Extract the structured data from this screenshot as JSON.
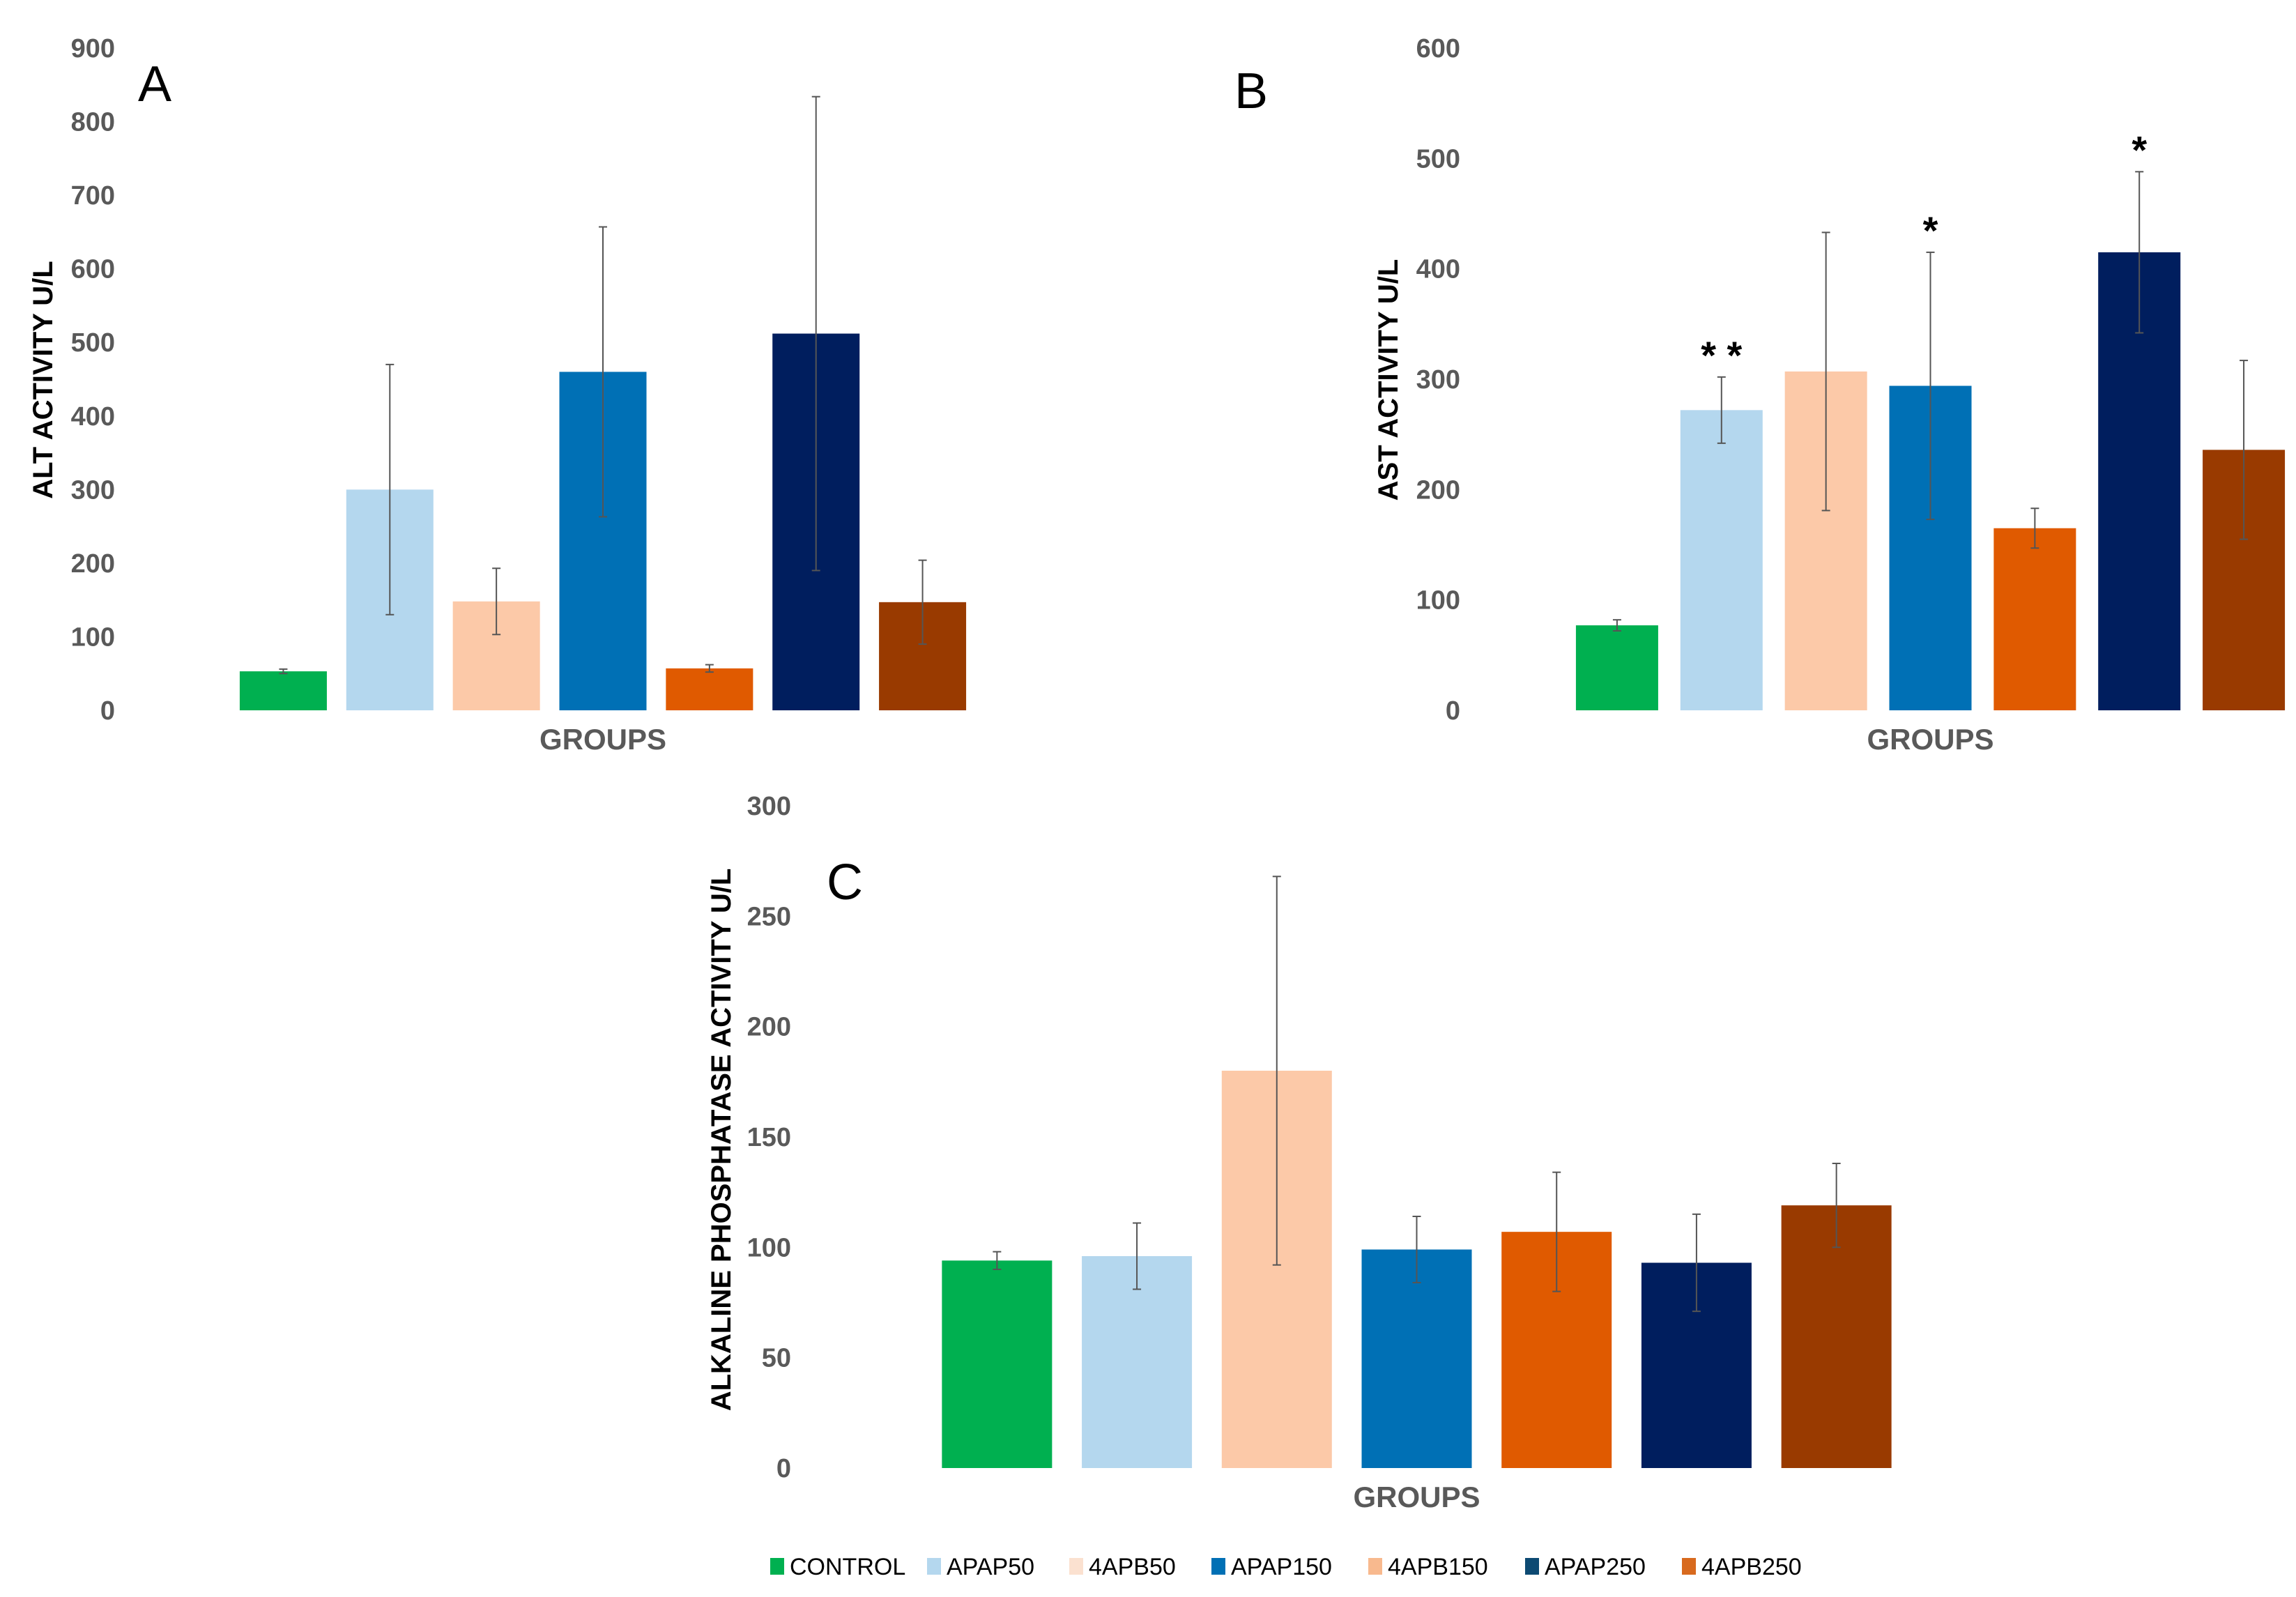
{
  "legend": [
    {
      "label": "CONTROL",
      "color": "#00b050"
    },
    {
      "label": "APAP50",
      "color": "#b4d7ee"
    },
    {
      "label": "4APB50",
      "color": "#fbe1d0"
    },
    {
      "label": "APAP150",
      "color": "#0070b5"
    },
    {
      "label": "4APB150",
      "color": "#f8b98e"
    },
    {
      "label": "APAP250",
      "color": "#0d4a73"
    },
    {
      "label": "4APB250",
      "color": "#d86a1e"
    }
  ],
  "chart_data": [
    {
      "type": "bar",
      "panel": "A",
      "ylabel": "ALT ACTIVITY  U/L",
      "xlabel": "GROUPS",
      "ylim": [
        0,
        900
      ],
      "ticks": [
        0,
        100,
        200,
        300,
        400,
        500,
        600,
        700,
        800,
        900
      ],
      "categories": [
        "CONTROL",
        "APAP50",
        "4APB50",
        "APAP150",
        "4APB150",
        "APAP250",
        "4APB250"
      ],
      "colors": [
        "#00b050",
        "#b4d7ee",
        "#fcc9a8",
        "#0070b5",
        "#e05a00",
        "#001e5e",
        "#993a00"
      ],
      "values": [
        53,
        300,
        148,
        460,
        57,
        512,
        147
      ],
      "errors": [
        3,
        170,
        45,
        197,
        5,
        322,
        57
      ],
      "annotations": [
        "",
        "",
        "",
        "",
        "",
        "",
        ""
      ]
    },
    {
      "type": "bar",
      "panel": "B",
      "ylabel": "AST ACTIVITY U/L",
      "xlabel": "GROUPS",
      "ylim": [
        0,
        600
      ],
      "ticks": [
        0,
        100,
        200,
        300,
        400,
        500,
        600
      ],
      "categories": [
        "CONTROL",
        "APAP50",
        "4APB50",
        "APAP150",
        "4APB150",
        "APAP250",
        "4APB250"
      ],
      "colors": [
        "#00b050",
        "#b4d7ee",
        "#fcc9a8",
        "#0070b5",
        "#e05a00",
        "#001e5e",
        "#993a00"
      ],
      "values": [
        77,
        272,
        307,
        294,
        165,
        415,
        236
      ],
      "errors": [
        5,
        30,
        126,
        121,
        18,
        73,
        81
      ],
      "annotations": [
        "",
        "**",
        "",
        "*",
        "",
        "*",
        ""
      ]
    },
    {
      "type": "bar",
      "panel": "C",
      "ylabel": "ALKALINE PHOSPHATASE ACTIVITY U/L",
      "xlabel": "GROUPS",
      "ylim": [
        0,
        300
      ],
      "ticks": [
        0,
        50,
        100,
        150,
        200,
        250,
        300
      ],
      "categories": [
        "CONTROL",
        "APAP50",
        "4APB50",
        "APAP150",
        "4APB150",
        "APAP250",
        "4APB250"
      ],
      "colors": [
        "#00b050",
        "#b4d7ee",
        "#fcc9a8",
        "#0070b5",
        "#e05a00",
        "#001e5e",
        "#993a00"
      ],
      "values": [
        94,
        96,
        180,
        99,
        107,
        93,
        119
      ],
      "errors": [
        4,
        15,
        88,
        15,
        27,
        22,
        19
      ],
      "annotations": [
        "",
        "",
        "",
        "",
        "",
        "",
        ""
      ]
    }
  ]
}
